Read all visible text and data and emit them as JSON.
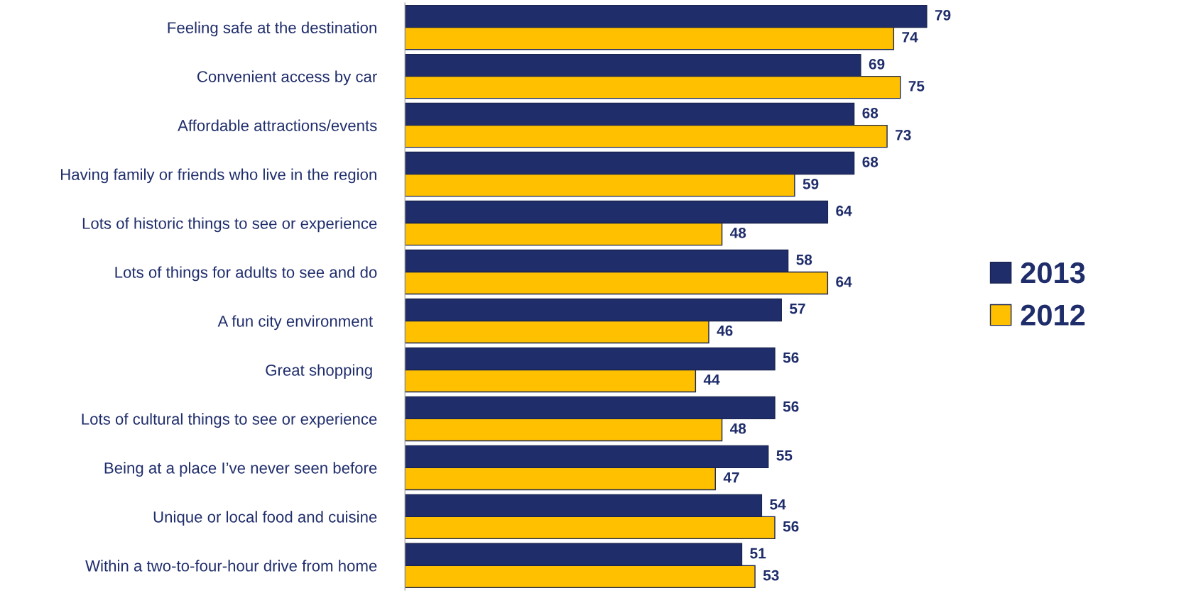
{
  "chart_data": {
    "type": "bar",
    "orientation": "horizontal",
    "categories": [
      "Feeling safe at the destination",
      "Convenient access by car",
      "Affordable attractions/events",
      "Having family or friends who live in the region",
      "Lots of historic things to see or experience",
      "Lots of things for adults to see and do",
      "A fun city environment ",
      "Great shopping ",
      "Lots of cultural things to see or experience",
      "Being at a place I’ve never seen before",
      "Unique or local food and cuisine",
      "Within a two-to-four-hour drive from home"
    ],
    "series": [
      {
        "name": "2013",
        "color": "#1f2d6b",
        "values": [
          79,
          69,
          68,
          68,
          64,
          58,
          57,
          56,
          56,
          55,
          54,
          51
        ]
      },
      {
        "name": "2012",
        "color": "#ffc000",
        "values": [
          74,
          75,
          73,
          59,
          48,
          64,
          46,
          44,
          48,
          47,
          56,
          53
        ]
      }
    ],
    "data_labels": true,
    "legend": "right"
  }
}
